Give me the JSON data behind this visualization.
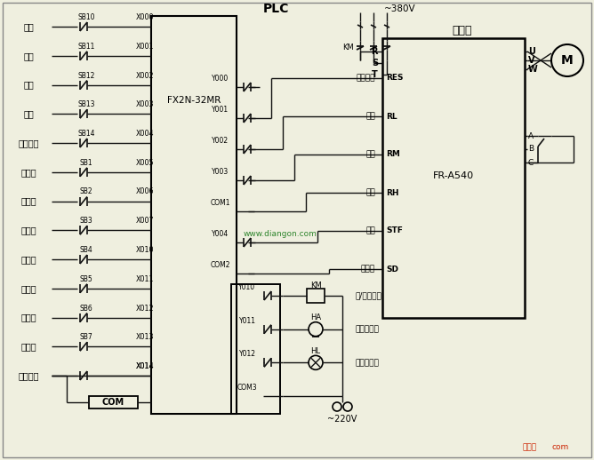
{
  "bg_color": "#efefdf",
  "title": "PLC",
  "plc_label": "FX2N-32MR",
  "vfd_label": "变频器",
  "vfd_model": "FR-A540",
  "voltage_380": "~380V",
  "voltage_220": "~220V",
  "left_labels": [
    "通电",
    "断电",
    "运行",
    "停止",
    "故障复位",
    "转速一",
    "转速二",
    "转速三",
    "转速四",
    "转速五",
    "转速六",
    "转速七",
    "故障检测"
  ],
  "sb_labels": [
    "SB10",
    "SB11",
    "SB12",
    "SB13",
    "SB14",
    "SB1",
    "SB2",
    "SB3",
    "SB4",
    "SB5",
    "SB6",
    "SB7",
    ""
  ],
  "x_labels": [
    "X000",
    "X001",
    "X002",
    "X003",
    "X004",
    "X005",
    "X006",
    "X007",
    "X010",
    "X011",
    "X012",
    "X013",
    "X014"
  ],
  "y_out_labels": [
    "Y000",
    "Y001",
    "Y002",
    "Y003",
    "COM1",
    "Y004",
    "COM2"
  ],
  "y_low_labels": [
    "Y010",
    "Y011",
    "Y012",
    "COM3"
  ],
  "vfd_term_labels": [
    "故障复位",
    "低速",
    "中速",
    "高速",
    "正转",
    "公共端"
  ],
  "vfd_terms": [
    "RES",
    "RL",
    "RM",
    "RH",
    "STF",
    "SD"
  ],
  "rst_labels": [
    "R",
    "S",
    "T"
  ],
  "uvw_labels": [
    "U",
    "V",
    "W"
  ],
  "abc_labels": [
    "A",
    "B",
    "C"
  ],
  "right_labels": [
    "通/断电控制",
    "故障报警铃",
    "故障报警灯"
  ],
  "watermark": "www.diangon.com",
  "logo1": "技代图",
  "logo2": "com",
  "km_label": "KM",
  "ha_label": "HA",
  "hl_label": "HL",
  "line_color": "#111111",
  "green_color": "#1a7a1a",
  "red_color": "#cc2200",
  "border_color": "#888888"
}
